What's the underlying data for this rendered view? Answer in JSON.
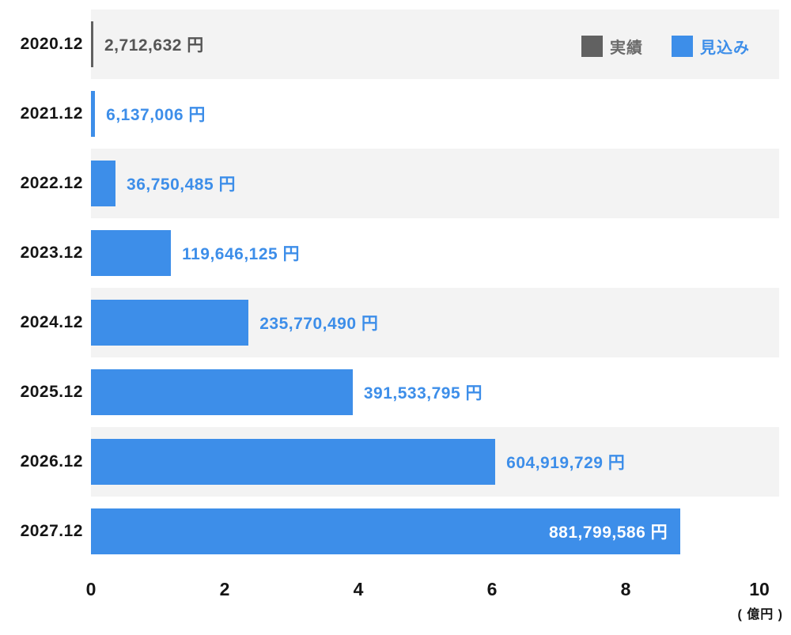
{
  "chart_data": {
    "type": "bar",
    "orientation": "horizontal",
    "title": "",
    "categories": [
      "2020.12",
      "2021.12",
      "2022.12",
      "2023.12",
      "2024.12",
      "2025.12",
      "2026.12",
      "2027.12"
    ],
    "values": [
      2712632,
      6137006,
      36750485,
      119646125,
      235770490,
      391533795,
      604919729,
      881799586
    ],
    "value_labels": [
      "2,712,632 円",
      "6,137,006 円",
      "36,750,485 円",
      "119,646,125 円",
      "235,770,490 円",
      "391,533,795 円",
      "604,919,729 円",
      "881,799,586 円"
    ],
    "series": [
      {
        "name": "実績",
        "rows": [
          0
        ],
        "color": "#616161"
      },
      {
        "name": "見込み",
        "rows": [
          1,
          2,
          3,
          4,
          5,
          6,
          7
        ],
        "color": "#3d8ee9"
      }
    ],
    "bar_colors": [
      "#616161",
      "#3d8ee9",
      "#3d8ee9",
      "#3d8ee9",
      "#3d8ee9",
      "#3d8ee9",
      "#3d8ee9",
      "#3d8ee9"
    ],
    "value_label_colors": [
      "#555555",
      "#3d8ee9",
      "#3d8ee9",
      "#3d8ee9",
      "#3d8ee9",
      "#3d8ee9",
      "#3d8ee9",
      "#ffffff"
    ],
    "value_label_inside": [
      false,
      false,
      false,
      false,
      false,
      false,
      false,
      true
    ],
    "legend": {
      "position": "top-right",
      "items": [
        {
          "label": "実績",
          "color": "#616161",
          "text_color": "#6b6b6b"
        },
        {
          "label": "見込み",
          "color": "#3d8ee9",
          "text_color": "#3d8ee9"
        }
      ]
    },
    "x_ticks": [
      "0",
      "2",
      "4",
      "6",
      "8",
      "10"
    ],
    "x_tick_values": [
      0,
      2,
      4,
      6,
      8,
      10
    ],
    "x_tick_unit": 100000000,
    "x_max_value": 1000000000,
    "x_unit_label": "( 億円 )",
    "xlim": [
      0,
      1000000000
    ],
    "grid": false,
    "row_stripe_color": "#f3f3f3"
  }
}
